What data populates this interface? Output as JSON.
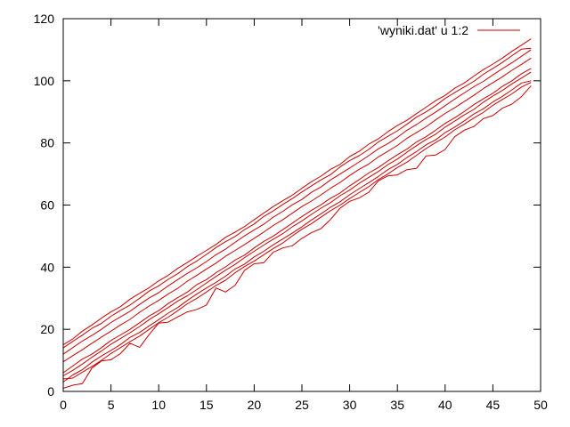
{
  "chart_data": {
    "type": "line",
    "title": "",
    "xlabel": "",
    "ylabel": "",
    "xlim": [
      0,
      50
    ],
    "ylim": [
      0,
      120
    ],
    "xticks": [
      0,
      5,
      10,
      15,
      20,
      25,
      30,
      35,
      40,
      45,
      50
    ],
    "yticks": [
      0,
      20,
      40,
      60,
      80,
      100,
      120
    ],
    "grid": false,
    "legend_position": "top-right",
    "line_color": "#cc0000",
    "legend": {
      "label": "'wyniki.dat' u 1:2"
    },
    "x": [
      0,
      1,
      2,
      3,
      4,
      5,
      6,
      7,
      8,
      9,
      10,
      11,
      12,
      13,
      14,
      15,
      16,
      17,
      18,
      19,
      20,
      21,
      22,
      23,
      24,
      25,
      26,
      27,
      28,
      29,
      30,
      31,
      32,
      33,
      34,
      35,
      36,
      37,
      38,
      39,
      40,
      41,
      42,
      43,
      44,
      45,
      46,
      47,
      48,
      49
    ],
    "series": [
      {
        "values": [
          15.0,
          16.9,
          19.4,
          21.4,
          23.6,
          25.6,
          27.3,
          29.7,
          31.6,
          33.4,
          35.6,
          37.4,
          39.6,
          41.5,
          43.5,
          45.4,
          47.3,
          49.6,
          51.3,
          53.1,
          55.3,
          57.4,
          59.5,
          61.4,
          63.2,
          65.4,
          67.5,
          69.3,
          71.5,
          73.1,
          75.6,
          77.3,
          79.6,
          81.3,
          83.6,
          85.6,
          87.3,
          89.4,
          91.5,
          93.6,
          95.3,
          97.6,
          99.3,
          101.5,
          103.6,
          105.4,
          107.3,
          109.5,
          111.5,
          113.5
        ]
      },
      {
        "values": [
          14.0,
          16.1,
          18.1,
          20.3,
          21.9,
          24.2,
          26.1,
          27.8,
          30.0,
          32.3,
          34.0,
          36.1,
          37.9,
          40.2,
          42.0,
          44.1,
          46.3,
          48.2,
          49.9,
          52.1,
          53.9,
          56.3,
          58.1,
          60.2,
          62.1,
          64.2,
          66.2,
          68.1,
          69.8,
          72.3,
          74.3,
          75.9,
          77.9,
          80.3,
          82.1,
          83.9,
          86.0,
          88.3,
          90.0,
          92.0,
          94.3,
          96.2,
          98.0,
          99.8,
          102.1,
          104.0,
          105.9,
          108.1,
          110.2,
          110.5
        ]
      },
      {
        "values": [
          12.0,
          14.1,
          16.2,
          18.0,
          20.0,
          22.2,
          24.0,
          25.8,
          28.0,
          30.1,
          31.8,
          34.0,
          36.0,
          38.0,
          39.8,
          41.8,
          44.0,
          45.8,
          48.0,
          50.1,
          52.0,
          53.8,
          56.1,
          58.0,
          60.1,
          61.8,
          64.1,
          65.8,
          68.1,
          70.0,
          71.9,
          73.9,
          75.9,
          78.1,
          79.8,
          81.8,
          84.1,
          85.9,
          88.0,
          89.9,
          92.0,
          94.1,
          96.1,
          98.1,
          99.8,
          101.9,
          103.9,
          105.8,
          107.9,
          110.0
        ]
      },
      {
        "values": [
          9.5,
          11.5,
          13.4,
          15.5,
          17.5,
          19.4,
          21.4,
          23.2,
          25.5,
          27.5,
          29.3,
          31.4,
          33.2,
          35.5,
          37.4,
          39.4,
          41.3,
          43.5,
          45.4,
          47.3,
          49.3,
          51.3,
          53.4,
          55.3,
          57.4,
          59.5,
          61.3,
          63.3,
          65.4,
          67.3,
          69.5,
          71.5,
          73.2,
          75.5,
          77.3,
          79.2,
          81.5,
          83.3,
          85.2,
          87.4,
          89.5,
          91.3,
          93.3,
          95.3,
          97.5,
          99.4,
          101.3,
          103.4,
          105.3,
          107.3
        ]
      },
      {
        "values": [
          6.0,
          8.2,
          10.4,
          12.0,
          14.1,
          16.4,
          18.2,
          20.0,
          22.1,
          24.3,
          26.0,
          28.3,
          30.2,
          32.0,
          34.4,
          36.0,
          38.2,
          40.1,
          42.3,
          43.9,
          46.2,
          48.3,
          50.0,
          52.1,
          54.2,
          56.3,
          58.3,
          60.1,
          62.2,
          63.9,
          66.2,
          68.2,
          70.3,
          72.1,
          74.2,
          76.2,
          78.0,
          80.3,
          82.0,
          84.1,
          86.3,
          88.1,
          90.1,
          92.3,
          94.2,
          96.0,
          98.2,
          100.0,
          102.3,
          104.0
        ]
      },
      {
        "values": [
          5.0,
          6.8,
          8.8,
          11.0,
          13.0,
          15.2,
          17.0,
          18.9,
          20.9,
          23.1,
          25.0,
          27.0,
          29.1,
          30.8,
          32.8,
          34.9,
          37.0,
          39.0,
          40.9,
          43.1,
          45.1,
          47.1,
          49.0,
          50.8,
          53.0,
          54.9,
          57.0,
          59.0,
          60.8,
          63.0,
          64.8,
          67.0,
          68.9,
          70.8,
          73.0,
          74.8,
          77.0,
          79.1,
          81.1,
          82.8,
          85.1,
          87.0,
          89.0,
          90.8,
          93.1,
          95.1,
          96.9,
          99.0,
          100.9,
          102.8
        ]
      },
      {
        "values": [
          3.0,
          5.3,
          7.0,
          9.4,
          11.4,
          13.2,
          15.1,
          17.4,
          19.0,
          21.1,
          23.1,
          25.2,
          27.0,
          29.3,
          31.4,
          33.3,
          35.1,
          37.1,
          39.4,
          41.0,
          43.3,
          45.1,
          47.2,
          49.1,
          51.0,
          53.0,
          55.2,
          57.2,
          59.3,
          61.1,
          63.3,
          65.3,
          67.2,
          69.2,
          71.4,
          73.1,
          75.3,
          77.2,
          79.4,
          81.0,
          83.3,
          85.1,
          87.1,
          89.3,
          91.0,
          93.2,
          95.0,
          97.1,
          99.3,
          100.0
        ]
      },
      {
        "values": [
          4.0,
          4.3,
          6.2,
          8.0,
          10.0,
          12.2,
          14.1,
          16.0,
          17.8,
          20.0,
          22.1,
          23.9,
          26.0,
          28.2,
          30.0,
          32.0,
          34.1,
          35.8,
          38.2,
          40.2,
          42.0,
          44.0,
          46.0,
          47.8,
          50.1,
          52.2,
          54.0,
          56.1,
          58.2,
          60.0,
          62.1,
          64.0,
          65.9,
          68.2,
          70.0,
          72.1,
          73.8,
          76.0,
          78.2,
          80.1,
          81.9,
          84.2,
          86.0,
          88.0,
          89.8,
          92.1,
          94.0,
          95.8,
          98.0,
          99.5
        ]
      },
      {
        "values": [
          1.0,
          2.0,
          2.5,
          7.5,
          9.8,
          10.2,
          12.2,
          15.5,
          14.2,
          18.3,
          22.0,
          22.3,
          24.0,
          25.6,
          26.4,
          27.8,
          33.3,
          32.0,
          34.2,
          39.0,
          41.1,
          41.4,
          44.8,
          46.2,
          46.9,
          49.3,
          51.1,
          52.4,
          55.4,
          59.0,
          61.2,
          62.3,
          64.1,
          67.8,
          69.4,
          69.7,
          71.4,
          71.8,
          75.8,
          76.1,
          77.9,
          82.0,
          84.1,
          85.3,
          87.8,
          88.8,
          91.2,
          92.5,
          94.9,
          98.4
        ]
      }
    ]
  }
}
